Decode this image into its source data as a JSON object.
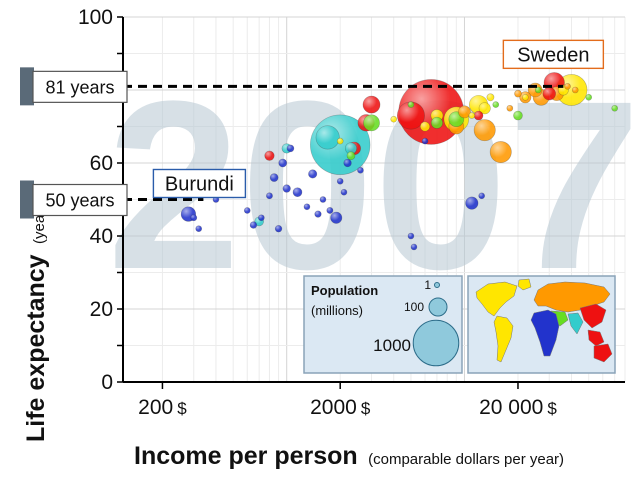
{
  "chart_data": {
    "type": "scatter",
    "big_year": "2007",
    "xlabel": "Income per person",
    "xlabel_note": "(comparable dollars per year)",
    "ylabel": "Life expectancy",
    "ylabel_note": "(years)",
    "x_scale": "log",
    "xlim": [
      120,
      80000
    ],
    "ylim": [
      0,
      100
    ],
    "y_ticks": [
      0,
      20,
      40,
      60,
      80,
      100
    ],
    "y_tick_labels": [
      "0",
      "20",
      "40",
      "60",
      "",
      "100"
    ],
    "x_ticks": [
      {
        "value": 200,
        "number": "200",
        "unit": "$"
      },
      {
        "value": 2000,
        "number": "2000",
        "unit": "$"
      },
      {
        "value": 20000,
        "number": "20 000",
        "unit": "$"
      }
    ],
    "grid": true,
    "annotations": [
      {
        "label": "Sweden",
        "x": 36000,
        "y": 81,
        "color": "#e36c1c"
      },
      {
        "label": "Burundi",
        "x": 340,
        "y": 50,
        "color": "#2a5caa"
      }
    ],
    "reference_lines": [
      {
        "label": "81 years",
        "y": 81
      },
      {
        "label": "50 years",
        "y": 50
      }
    ],
    "legend": {
      "title": "Population",
      "subtitle": "(millions)",
      "sizes": [
        {
          "label": "1",
          "value": 1
        },
        {
          "label": "100",
          "value": 100
        },
        {
          "label": "1000",
          "value": 1000
        }
      ],
      "map": true
    },
    "region_colors": {
      "americas": "#ffe600",
      "europe_central_asia": "#ff9900",
      "africa": "#2233cc",
      "east_asia_pacific": "#ee1111",
      "south_asia": "#33cccc",
      "middle_east_north_africa": "#66dd22"
    },
    "points": [
      {
        "x": 400,
        "y": 50,
        "pop": 8,
        "region": "africa"
      },
      {
        "x": 280,
        "y": 46,
        "pop": 66,
        "region": "africa"
      },
      {
        "x": 300,
        "y": 45,
        "pop": 12,
        "region": "africa"
      },
      {
        "x": 320,
        "y": 42,
        "pop": 10,
        "region": "africa"
      },
      {
        "x": 500,
        "y": 55,
        "pop": 6,
        "region": "africa"
      },
      {
        "x": 600,
        "y": 47,
        "pop": 4,
        "region": "africa"
      },
      {
        "x": 650,
        "y": 43,
        "pop": 14,
        "region": "africa"
      },
      {
        "x": 720,
        "y": 45,
        "pop": 5,
        "region": "africa"
      },
      {
        "x": 800,
        "y": 51,
        "pop": 12,
        "region": "africa"
      },
      {
        "x": 850,
        "y": 56,
        "pop": 20,
        "region": "africa"
      },
      {
        "x": 900,
        "y": 42,
        "pop": 14,
        "region": "africa"
      },
      {
        "x": 950,
        "y": 60,
        "pop": 20,
        "region": "africa"
      },
      {
        "x": 1000,
        "y": 53,
        "pop": 18,
        "region": "africa"
      },
      {
        "x": 1050,
        "y": 64,
        "pop": 15,
        "region": "africa"
      },
      {
        "x": 1150,
        "y": 52,
        "pop": 25,
        "region": "africa"
      },
      {
        "x": 1300,
        "y": 48,
        "pop": 10,
        "region": "africa"
      },
      {
        "x": 1400,
        "y": 57,
        "pop": 22,
        "region": "africa"
      },
      {
        "x": 1500,
        "y": 46,
        "pop": 13,
        "region": "africa"
      },
      {
        "x": 1600,
        "y": 50,
        "pop": 9,
        "region": "africa"
      },
      {
        "x": 1750,
        "y": 47,
        "pop": 12,
        "region": "africa"
      },
      {
        "x": 1900,
        "y": 45,
        "pop": 40,
        "region": "africa"
      },
      {
        "x": 2000,
        "y": 55,
        "pop": 8,
        "region": "africa"
      },
      {
        "x": 2100,
        "y": 52,
        "pop": 6,
        "region": "africa"
      },
      {
        "x": 2200,
        "y": 60,
        "pop": 18,
        "region": "africa"
      },
      {
        "x": 2600,
        "y": 58,
        "pop": 5,
        "region": "africa"
      },
      {
        "x": 5000,
        "y": 40,
        "pop": 4,
        "region": "africa"
      },
      {
        "x": 5200,
        "y": 37,
        "pop": 3,
        "region": "africa"
      },
      {
        "x": 6000,
        "y": 66,
        "pop": 6,
        "region": "africa"
      },
      {
        "x": 11000,
        "y": 49,
        "pop": 48,
        "region": "africa"
      },
      {
        "x": 12500,
        "y": 51,
        "pop": 2,
        "region": "africa"
      },
      {
        "x": 1700,
        "y": 67,
        "pop": 170,
        "region": "south_asia"
      },
      {
        "x": 2000,
        "y": 65,
        "pop": 1100,
        "region": "south_asia"
      },
      {
        "x": 1000,
        "y": 64,
        "pop": 28,
        "region": "south_asia"
      },
      {
        "x": 2300,
        "y": 64,
        "pop": 40,
        "region": "south_asia"
      },
      {
        "x": 700,
        "y": 44,
        "pop": 25,
        "region": "south_asia"
      },
      {
        "x": 5000,
        "y": 73,
        "pop": 230,
        "region": "east_asia_pacific"
      },
      {
        "x": 2400,
        "y": 64,
        "pop": 50,
        "region": "east_asia_pacific"
      },
      {
        "x": 800,
        "y": 62,
        "pop": 28,
        "region": "east_asia_pacific"
      },
      {
        "x": 3000,
        "y": 76,
        "pop": 90,
        "region": "east_asia_pacific"
      },
      {
        "x": 6500,
        "y": 74,
        "pop": 1300,
        "region": "east_asia_pacific"
      },
      {
        "x": 30000,
        "y": 79,
        "pop": 50,
        "region": "east_asia_pacific"
      },
      {
        "x": 32000,
        "y": 82,
        "pop": 130,
        "region": "east_asia_pacific"
      },
      {
        "x": 12000,
        "y": 73,
        "pop": 25,
        "region": "east_asia_pacific"
      },
      {
        "x": 2800,
        "y": 71,
        "pop": 85,
        "region": "east_asia_pacific"
      },
      {
        "x": 13000,
        "y": 69,
        "pop": 140,
        "region": "europe_central_asia"
      },
      {
        "x": 16000,
        "y": 63,
        "pop": 140,
        "region": "europe_central_asia"
      },
      {
        "x": 9000,
        "y": 70,
        "pop": 70,
        "region": "europe_central_asia"
      },
      {
        "x": 25000,
        "y": 80,
        "pop": 60,
        "region": "europe_central_asia"
      },
      {
        "x": 22000,
        "y": 78,
        "pop": 40,
        "region": "europe_central_asia"
      },
      {
        "x": 20000,
        "y": 79,
        "pop": 15,
        "region": "europe_central_asia"
      },
      {
        "x": 27000,
        "y": 78,
        "pop": 80,
        "region": "europe_central_asia"
      },
      {
        "x": 38000,
        "y": 81,
        "pop": 9,
        "region": "europe_central_asia"
      },
      {
        "x": 42000,
        "y": 80,
        "pop": 5,
        "region": "europe_central_asia"
      },
      {
        "x": 18000,
        "y": 75,
        "pop": 10,
        "region": "europe_central_asia"
      },
      {
        "x": 10000,
        "y": 74,
        "pop": 45,
        "region": "europe_central_asia"
      },
      {
        "x": 33000,
        "y": 79,
        "pop": 60,
        "region": "europe_central_asia"
      },
      {
        "x": 40000,
        "y": 80,
        "pop": 300,
        "region": "americas"
      },
      {
        "x": 36000,
        "y": 80,
        "pop": 33,
        "region": "americas"
      },
      {
        "x": 9000,
        "y": 72,
        "pop": 190,
        "region": "americas"
      },
      {
        "x": 12000,
        "y": 76,
        "pop": 105,
        "region": "americas"
      },
      {
        "x": 13000,
        "y": 75,
        "pop": 40,
        "region": "americas"
      },
      {
        "x": 7000,
        "y": 73,
        "pop": 45,
        "region": "americas"
      },
      {
        "x": 4000,
        "y": 72,
        "pop": 10,
        "region": "americas"
      },
      {
        "x": 6000,
        "y": 70,
        "pop": 28,
        "region": "americas"
      },
      {
        "x": 2000,
        "y": 66,
        "pop": 8,
        "region": "americas"
      },
      {
        "x": 14000,
        "y": 78,
        "pop": 16,
        "region": "americas"
      },
      {
        "x": 11000,
        "y": 73,
        "pop": 3,
        "region": "americas"
      },
      {
        "x": 22000,
        "y": 78,
        "pop": 4,
        "region": "americas"
      },
      {
        "x": 5000,
        "y": 76,
        "pop": 6,
        "region": "middle_east_north_africa"
      },
      {
        "x": 3000,
        "y": 71,
        "pop": 80,
        "region": "middle_east_north_africa"
      },
      {
        "x": 9000,
        "y": 72,
        "pop": 70,
        "region": "middle_east_north_africa"
      },
      {
        "x": 2300,
        "y": 62,
        "pop": 20,
        "region": "middle_east_north_africa"
      },
      {
        "x": 7000,
        "y": 71,
        "pop": 40,
        "region": "middle_east_north_africa"
      },
      {
        "x": 20000,
        "y": 73,
        "pop": 25,
        "region": "middle_east_north_africa"
      },
      {
        "x": 15000,
        "y": 76,
        "pop": 8,
        "region": "middle_east_north_africa"
      },
      {
        "x": 26000,
        "y": 80,
        "pop": 7,
        "region": "middle_east_north_africa"
      },
      {
        "x": 50000,
        "y": 78,
        "pop": 1,
        "region": "middle_east_north_africa"
      },
      {
        "x": 70000,
        "y": 75,
        "pop": 1,
        "region": "middle_east_north_africa"
      }
    ]
  }
}
